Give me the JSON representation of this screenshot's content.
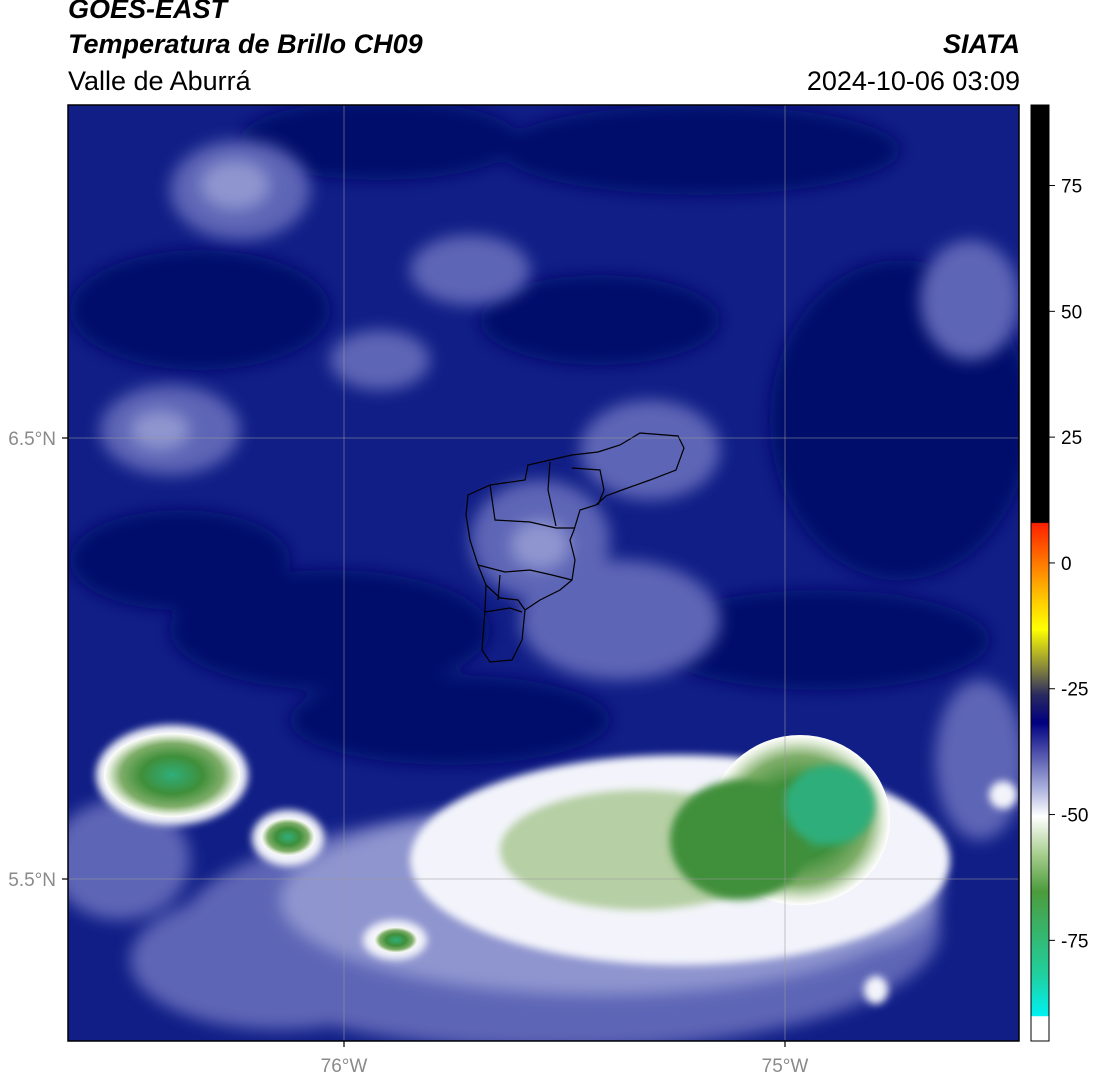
{
  "header": {
    "source": "GOES-EAST",
    "product": "Temperatura de Brillo CH09",
    "region": "Valle de Aburrá",
    "brand": "SIATA",
    "timestamp": "2024-10-06 03:09"
  },
  "map": {
    "lat_labels": [
      "6.5°N",
      "5.5°N"
    ],
    "lon_labels": [
      "76°W",
      "75°W"
    ],
    "background_color": "#0b1a7a"
  },
  "colorbar": {
    "ticks": [
      {
        "value": 75,
        "label": "75"
      },
      {
        "value": 50,
        "label": "50"
      },
      {
        "value": 25,
        "label": "25"
      },
      {
        "value": 0,
        "label": "0"
      },
      {
        "value": -25,
        "label": "-25"
      },
      {
        "value": -50,
        "label": "-50"
      },
      {
        "value": -75,
        "label": "-75"
      }
    ],
    "range": [
      -95,
      91
    ],
    "colors": {
      "warm": "#000000",
      "red": "#ff2000",
      "orange": "#ff9a00",
      "yellow": "#ffff00",
      "olive": "#8b8b3a",
      "navy": "#000080",
      "lavender": "#aab0dd",
      "white": "#ffffff",
      "green": "#4c9c3c",
      "teal": "#20d0a0",
      "cyan": "#00f0f0"
    }
  }
}
